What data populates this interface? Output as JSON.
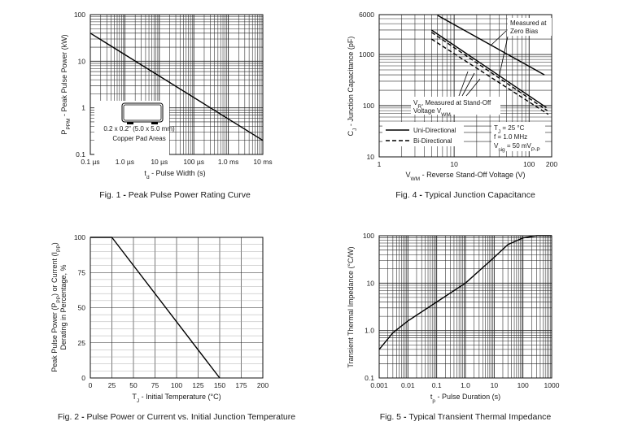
{
  "chart_data": [
    {
      "id": "fig1",
      "type": "line",
      "caption": "Fig. 1 - Peak Pulse Power Rating Curve",
      "xlabel": "td - Pulse Width (s)",
      "ylabel": "PPPM - Peak Pulse Power (kW)",
      "xscale": "log",
      "yscale": "log",
      "xlim": [
        1e-07,
        0.01
      ],
      "ylim": [
        0.1,
        100
      ],
      "xticks": [
        1e-07,
        1e-06,
        1e-05,
        0.0001,
        0.001,
        0.01
      ],
      "xtick_labels": [
        "0.1 µs",
        "1.0 µs",
        "10 µs",
        "100 µs",
        "1.0 ms",
        "10 ms"
      ],
      "yticks": [
        0.1,
        1,
        10,
        100
      ],
      "ytick_labels": [
        "0.1",
        "1",
        "10",
        "100"
      ],
      "grid": true,
      "series": [
        {
          "x": [
            1e-07,
            0.01
          ],
          "y": [
            40,
            0.2
          ]
        }
      ],
      "annotations": [
        "0.2 x 0.2\" (5.0 x 5.0 mm)",
        "Copper Pad Areas"
      ]
    },
    {
      "id": "fig4",
      "type": "line",
      "caption": "Fig. 4 - Typical Junction Capacitance",
      "xlabel": "VWM - Reverse Stand-Off Voltage (V)",
      "ylabel": "CJ - Junction Capacitance (pF)",
      "xscale": "log",
      "yscale": "log",
      "xlim": [
        1,
        200
      ],
      "ylim": [
        10,
        6000
      ],
      "xticks": [
        1,
        10,
        100,
        200
      ],
      "xtick_labels": [
        "1",
        "10",
        "100",
        "200"
      ],
      "yticks": [
        10,
        100,
        1000,
        6000
      ],
      "ytick_labels": [
        "10",
        "100",
        "1000",
        "6000"
      ],
      "grid": true,
      "legend": {
        "position": "bottom-left",
        "entries": [
          "Uni-Directional",
          "Bi-Directional"
        ]
      },
      "conditions": [
        "TJ = 25 °C",
        "f = 1.0 MHz",
        "Vsig = 50 mVP-P"
      ],
      "series": [
        {
          "name": "Uni-Directional",
          "dash": false,
          "x": [
            6,
            160
          ],
          "y": [
            5800,
            400
          ]
        },
        {
          "name": "Uni-Directional",
          "dash": false,
          "x": [
            5,
            170
          ],
          "y": [
            3000,
            92
          ]
        },
        {
          "name": "Bi-Directional",
          "dash": true,
          "x": [
            5,
            175
          ],
          "y": [
            2700,
            80
          ]
        },
        {
          "name": "Bi-Directional",
          "dash": true,
          "x": [
            5,
            180
          ],
          "y": [
            2000,
            68
          ]
        }
      ],
      "annotations": [
        "Measured at Zero Bias",
        "VR, Measured at Stand-Off Voltage VWM"
      ]
    },
    {
      "id": "fig2",
      "type": "line",
      "caption": "Fig. 2 - Pulse Power or Current vs. Initial Junction Temperature",
      "xlabel": "TJ - Initial Temperature (°C)",
      "ylabel": "Peak Pulse Power (PPP) or Current (IPP) Derating in Percentage, %",
      "xscale": "linear",
      "yscale": "linear",
      "xlim": [
        0,
        200
      ],
      "ylim": [
        0,
        100
      ],
      "xticks": [
        0,
        25,
        50,
        75,
        100,
        125,
        150,
        175,
        200
      ],
      "xtick_labels": [
        "0",
        "25",
        "50",
        "75",
        "100",
        "125",
        "150",
        "175",
        "200"
      ],
      "yticks": [
        0,
        25,
        50,
        75,
        100
      ],
      "ytick_labels": [
        "0",
        "25",
        "50",
        "75",
        "100"
      ],
      "grid": true,
      "series": [
        {
          "x": [
            0,
            25,
            150
          ],
          "y": [
            100,
            100,
            0
          ]
        }
      ]
    },
    {
      "id": "fig5",
      "type": "line",
      "caption": "Fig. 5 - Typical Transient Thermal Impedance",
      "xlabel": "tp - Pulse Duration (s)",
      "ylabel": "Transient Thermal Impedance (°C/W)",
      "xscale": "log",
      "yscale": "log",
      "xlim": [
        0.001,
        1000
      ],
      "ylim": [
        0.1,
        100
      ],
      "xticks": [
        0.001,
        0.01,
        0.1,
        1,
        10,
        100,
        1000
      ],
      "xtick_labels": [
        "0.001",
        "0.01",
        "0.1",
        "1.0",
        "10",
        "100",
        "1000"
      ],
      "yticks": [
        0.1,
        1,
        10,
        100
      ],
      "ytick_labels": [
        "0.1",
        "1.0",
        "10",
        "100"
      ],
      "grid": true,
      "series": [
        {
          "x": [
            0.001,
            0.003,
            0.01,
            0.1,
            1,
            10,
            30,
            100,
            300,
            1000
          ],
          "y": [
            0.4,
            0.9,
            1.6,
            4,
            10,
            35,
            65,
            90,
            100,
            100
          ]
        }
      ]
    }
  ]
}
